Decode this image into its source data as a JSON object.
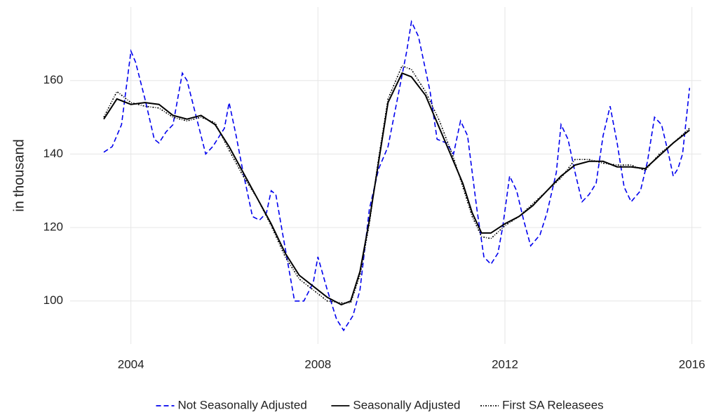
{
  "chart_data": {
    "type": "line",
    "ylabel": "in thousand",
    "xlim": [
      2002.7,
      2016.2
    ],
    "xticks": [
      2004,
      2008,
      2012,
      2016
    ],
    "ylim": [
      88.3,
      180
    ],
    "yticks": [
      100,
      120,
      140,
      160
    ],
    "grid": true,
    "legend": "bottom",
    "series": [
      {
        "name": "Not Seasonally Adjusted",
        "color": "#0000ee",
        "dash": "dashed",
        "x": [
          2003.42,
          2003.6,
          2003.8,
          2004.0,
          2004.1,
          2004.3,
          2004.5,
          2004.6,
          2004.75,
          2004.9,
          2005.1,
          2005.2,
          2005.4,
          2005.6,
          2005.75,
          2006.0,
          2006.1,
          2006.25,
          2006.4,
          2006.6,
          2006.75,
          2006.9,
          2007.0,
          2007.1,
          2007.25,
          2007.5,
          2007.7,
          2007.9,
          2008.0,
          2008.2,
          2008.4,
          2008.55,
          2008.75,
          2008.9,
          2009.1,
          2009.3,
          2009.5,
          2009.7,
          2009.9,
          2010.0,
          2010.15,
          2010.4,
          2010.55,
          2010.75,
          2010.9,
          2011.05,
          2011.2,
          2011.4,
          2011.55,
          2011.7,
          2011.85,
          2011.95,
          2012.1,
          2012.25,
          2012.4,
          2012.55,
          2012.75,
          2012.9,
          2013.1,
          2013.2,
          2013.35,
          2013.5,
          2013.65,
          2013.8,
          2013.95,
          2014.1,
          2014.25,
          2014.4,
          2014.55,
          2014.7,
          2014.9,
          2015.05,
          2015.2,
          2015.35,
          2015.5,
          2015.6,
          2015.7,
          2015.8,
          2015.95
        ],
        "values": [
          140.5,
          142,
          148,
          168,
          165,
          155,
          144,
          143,
          146,
          148,
          162,
          160,
          150,
          140,
          142,
          147,
          154,
          145,
          135,
          123,
          122,
          124,
          130,
          129,
          118,
          100,
          100,
          105,
          112,
          103,
          95,
          92,
          96,
          103,
          125,
          136,
          142,
          155,
          168,
          176,
          172,
          157,
          144,
          143,
          140,
          149,
          145,
          125,
          112,
          110,
          113,
          120,
          134,
          130,
          122,
          115,
          118,
          124,
          135,
          148,
          144,
          135,
          127,
          129,
          132,
          145,
          153,
          143,
          131,
          127,
          130,
          138,
          150,
          148,
          140,
          134,
          136,
          140,
          158
        ]
      },
      {
        "name": "Seasonally Adjusted",
        "color": "#000000",
        "dash": "solid",
        "x": [
          2003.42,
          2003.7,
          2004.0,
          2004.3,
          2004.6,
          2004.9,
          2005.2,
          2005.5,
          2005.8,
          2006.1,
          2006.4,
          2006.7,
          2007.0,
          2007.3,
          2007.6,
          2007.9,
          2008.2,
          2008.5,
          2008.7,
          2008.9,
          2009.1,
          2009.3,
          2009.5,
          2009.8,
          2010.0,
          2010.3,
          2010.6,
          2010.9,
          2011.1,
          2011.3,
          2011.5,
          2011.7,
          2012.0,
          2012.3,
          2012.6,
          2012.9,
          2013.2,
          2013.5,
          2013.8,
          2014.1,
          2014.4,
          2014.7,
          2015.0,
          2015.3,
          2015.6,
          2015.95
        ],
        "values": [
          149.5,
          155,
          153.5,
          154,
          153.5,
          150.5,
          149.5,
          150.5,
          148,
          142,
          135,
          128,
          121,
          113,
          107,
          104,
          101,
          99,
          100,
          108,
          122,
          138,
          154,
          162,
          161,
          156,
          147,
          138,
          132,
          124,
          118.5,
          118.5,
          121,
          123,
          126,
          130,
          134,
          137,
          138,
          138,
          136.5,
          136.5,
          136,
          139.5,
          143,
          146.5
        ]
      },
      {
        "name": "First SA Releasees",
        "color": "#000000",
        "dash": "dotted",
        "x": [
          2003.42,
          2003.7,
          2004.0,
          2004.3,
          2004.6,
          2004.9,
          2005.2,
          2005.5,
          2005.8,
          2006.1,
          2006.4,
          2006.7,
          2007.0,
          2007.3,
          2007.6,
          2007.9,
          2008.2,
          2008.5,
          2008.7,
          2008.9,
          2009.1,
          2009.3,
          2009.5,
          2009.8,
          2010.0,
          2010.3,
          2010.6,
          2010.9,
          2011.1,
          2011.3,
          2011.5,
          2011.7,
          2012.0,
          2012.3,
          2012.6,
          2012.9,
          2013.2,
          2013.5,
          2013.8,
          2014.1,
          2014.4,
          2014.7,
          2015.0,
          2015.3,
          2015.6,
          2015.95
        ],
        "values": [
          150,
          157,
          154,
          153,
          152.5,
          150,
          149,
          150,
          148.5,
          141,
          134,
          128,
          120.5,
          112,
          106,
          103,
          100,
          99.5,
          99.5,
          107,
          121,
          139,
          155,
          164,
          163,
          157,
          149,
          139,
          131,
          123,
          117.5,
          117,
          120.5,
          123,
          126.5,
          130,
          133.5,
          138.5,
          138.5,
          137.5,
          137,
          137,
          135.5,
          140,
          143,
          147
        ]
      }
    ]
  }
}
